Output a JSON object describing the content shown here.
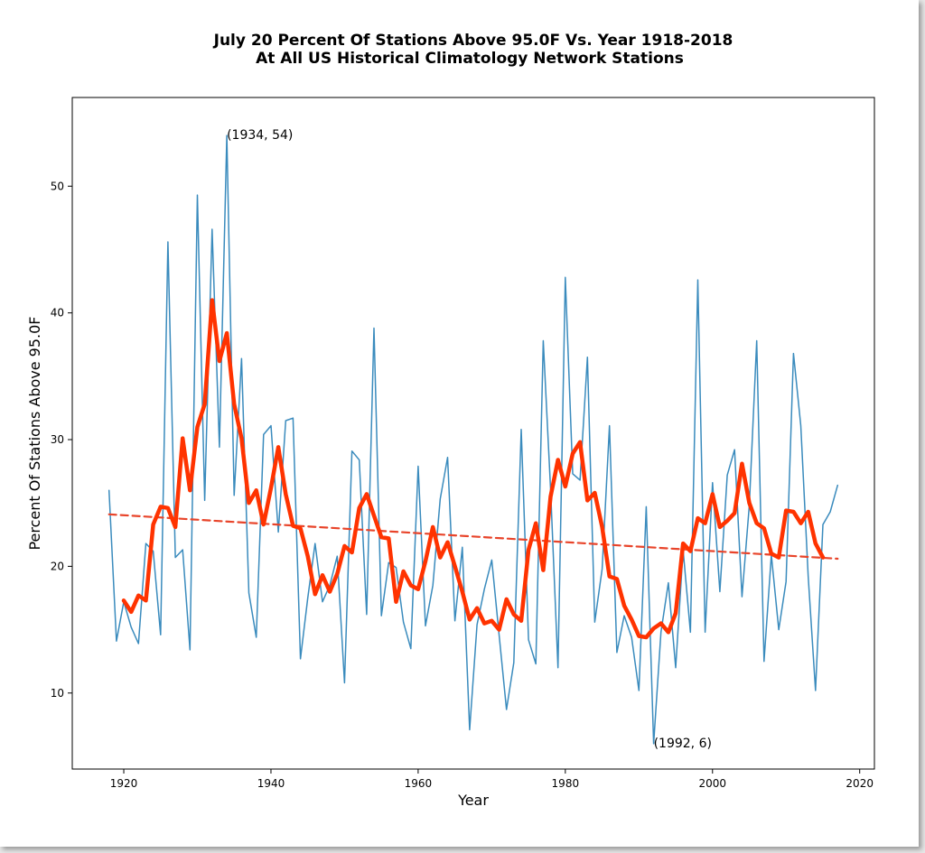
{
  "chart_data": {
    "type": "line",
    "title": "July 20 Percent Of Stations Above 95.0F Vs. Year 1918-2018",
    "subtitle": "At All US Historical Climatology Network Stations",
    "xlabel": "Year",
    "ylabel": "Percent Of Stations Above 95.0F",
    "xlim": [
      1913,
      2022
    ],
    "ylim": [
      4,
      57
    ],
    "xticks": [
      "1920",
      "1940",
      "1960",
      "1980",
      "2000",
      "2020"
    ],
    "yticks": [
      "10",
      "20",
      "30",
      "40",
      "50"
    ],
    "grid": false,
    "legend": "none",
    "colors": {
      "raw": "#3a8bbd",
      "smooth": "#ff3300",
      "trend": "#e8442a"
    },
    "series": [
      {
        "style": "raw",
        "x": [
          1918,
          1919,
          1920,
          1921,
          1922,
          1923,
          1924,
          1925,
          1926,
          1927,
          1928,
          1929,
          1930,
          1931,
          1932,
          1933,
          1934,
          1935,
          1936,
          1937,
          1938,
          1939,
          1940,
          1941,
          1942,
          1943,
          1944,
          1945,
          1946,
          1947,
          1948,
          1949,
          1950,
          1951,
          1952,
          1953,
          1954,
          1955,
          1956,
          1957,
          1958,
          1959,
          1960,
          1961,
          1962,
          1963,
          1964,
          1965,
          1966,
          1967,
          1968,
          1969,
          1970,
          1971,
          1972,
          1973,
          1974,
          1975,
          1976,
          1977,
          1978,
          1979,
          1980,
          1981,
          1982,
          1983,
          1984,
          1985,
          1986,
          1987,
          1988,
          1989,
          1990,
          1991,
          1992,
          1993,
          1994,
          1995,
          1996,
          1997,
          1998,
          1999,
          2000,
          2001,
          2002,
          2003,
          2004,
          2005,
          2006,
          2007,
          2008,
          2009,
          2010,
          2011,
          2012,
          2013,
          2014,
          2015,
          2016,
          2017
        ],
        "y": [
          26,
          14.1,
          17.2,
          15.2,
          13.9,
          21.8,
          21.2,
          14.6,
          45.6,
          20.7,
          21.3,
          13.4,
          49.3,
          25.2,
          46.6,
          29.4,
          54,
          25.6,
          36.4,
          17.9,
          14.4,
          30.4,
          31.1,
          22.7,
          31.5,
          31.7,
          12.7,
          17.5,
          21.8,
          17.2,
          18.5,
          20.8,
          10.8,
          29.1,
          28.4,
          16.2,
          38.8,
          16.1,
          20.3,
          19.9,
          15.6,
          13.5,
          27.9,
          15.3,
          18.5,
          25.3,
          28.6,
          15.7,
          21.5,
          7.1,
          15.4,
          18.2,
          20.5,
          14.6,
          8.7,
          12.4,
          30.8,
          14.2,
          12.3,
          37.8,
          26.1,
          12,
          42.8,
          27.3,
          26.8,
          36.5,
          15.6,
          19.8,
          31.1,
          13.2,
          16.1,
          14.4,
          10.2,
          24.7,
          6,
          14.8,
          18.7,
          12,
          21.3,
          14.8,
          42.6,
          14.8,
          26.6,
          18,
          27.2,
          29.2,
          17.6,
          24.8,
          37.8,
          12.5,
          20.9,
          15,
          18.8,
          36.8,
          31.1,
          19.2,
          10.2,
          23.3,
          24.3,
          26.4
        ]
      },
      {
        "style": "smooth",
        "x": [
          1920,
          1921,
          1922,
          1923,
          1924,
          1925,
          1926,
          1927,
          1928,
          1929,
          1930,
          1931,
          1932,
          1933,
          1934,
          1935,
          1936,
          1937,
          1938,
          1939,
          1940,
          1941,
          1942,
          1943,
          1944,
          1945,
          1946,
          1947,
          1948,
          1949,
          1950,
          1951,
          1952,
          1953,
          1954,
          1955,
          1956,
          1957,
          1958,
          1959,
          1960,
          1961,
          1962,
          1963,
          1964,
          1965,
          1966,
          1967,
          1968,
          1969,
          1970,
          1971,
          1972,
          1973,
          1974,
          1975,
          1976,
          1977,
          1978,
          1979,
          1980,
          1981,
          1982,
          1983,
          1984,
          1985,
          1986,
          1987,
          1988,
          1989,
          1990,
          1991,
          1992,
          1993,
          1994,
          1995,
          1996,
          1997,
          1998,
          1999,
          2000,
          2001,
          2002,
          2003,
          2004,
          2005,
          2006,
          2007,
          2008,
          2009,
          2010,
          2011,
          2012,
          2013,
          2014,
          2015
        ],
        "y": [
          17.3,
          16.4,
          17.7,
          17.3,
          23.3,
          24.7,
          24.6,
          23.1,
          30.1,
          26,
          31,
          32.8,
          41,
          36.2,
          38.4,
          32.8,
          30.1,
          25,
          26,
          23.3,
          26.2,
          29.4,
          25.7,
          23.2,
          23,
          20.8,
          17.8,
          19.3,
          18,
          19.4,
          21.6,
          21.1,
          24.6,
          25.7,
          24,
          22.3,
          22.2,
          17.2,
          19.6,
          18.5,
          18.2,
          20.4,
          23.1,
          20.7,
          21.9,
          20,
          18,
          15.8,
          16.7,
          15.5,
          15.7,
          15,
          17.4,
          16.2,
          15.7,
          21.3,
          23.4,
          19.7,
          25.5,
          28.4,
          26.3,
          28.9,
          29.8,
          25.2,
          25.8,
          23.1,
          19.2,
          19,
          16.9,
          15.8,
          14.5,
          14.4,
          15.1,
          15.5,
          14.8,
          16.3,
          21.8,
          21.2,
          23.8,
          23.4,
          25.7,
          23.1,
          23.6,
          24.2,
          28.1,
          25,
          23.4,
          23,
          21,
          20.7,
          24.4,
          24.3,
          23.4,
          24.3,
          21.8,
          20.7
        ]
      },
      {
        "style": "trend",
        "x": [
          1918,
          2017
        ],
        "y": [
          24.1,
          20.6
        ]
      }
    ],
    "annotations": [
      {
        "text": "(1934, 54)",
        "x": 1934,
        "y": 54
      },
      {
        "text": "(1992, 6)",
        "x": 1992,
        "y": 6
      }
    ]
  }
}
